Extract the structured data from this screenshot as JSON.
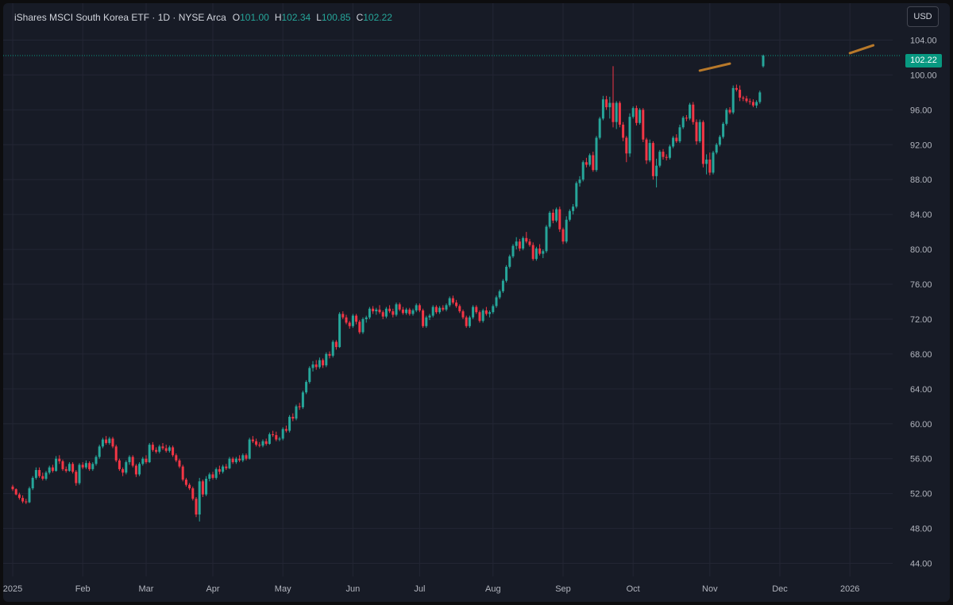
{
  "header": {
    "title": "iShares MSCI South Korea ETF · 1D · NYSE Arca",
    "open_label": "O",
    "open": "101.00",
    "high_label": "H",
    "high": "102.34",
    "low_label": "L",
    "low": "100.85",
    "close_label": "C",
    "close": "102.22"
  },
  "currency_button": "USD",
  "last_price_tag": "102.22",
  "colors": {
    "up": "#26a69a",
    "down": "#f23645",
    "background": "#171b26",
    "grid": "#232634",
    "trendline": "#b8792a",
    "price_line": "#089981"
  },
  "chart_data": {
    "type": "candlestick",
    "title": "iShares MSCI South Korea ETF",
    "y_axis": {
      "range": [
        42.5,
        105.5
      ],
      "ticks": [
        "44.00",
        "48.00",
        "52.00",
        "56.00",
        "60.00",
        "64.00",
        "68.00",
        "72.00",
        "76.00",
        "80.00",
        "84.00",
        "88.00",
        "92.00",
        "96.00",
        "100.00",
        "104.00"
      ]
    },
    "x_axis": {
      "labels": [
        "2025",
        "Feb",
        "Mar",
        "Apr",
        "May",
        "Jun",
        "Jul",
        "Aug",
        "Sep",
        "Oct",
        "Nov",
        "Dec",
        "2026"
      ],
      "label_day_index": [
        0,
        21,
        40,
        60,
        81,
        102,
        122,
        144,
        165,
        186,
        209,
        230,
        251
      ],
      "total_days": 258
    },
    "last_price": 102.22,
    "grid": true,
    "candles": [
      [
        52.8,
        53.0,
        52.3,
        52.5
      ],
      [
        52.5,
        52.6,
        51.8,
        51.9
      ],
      [
        51.9,
        52.1,
        51.3,
        51.5
      ],
      [
        51.5,
        51.8,
        50.9,
        51.1
      ],
      [
        51.1,
        51.4,
        50.8,
        51.0
      ],
      [
        51.0,
        52.8,
        50.9,
        52.6
      ],
      [
        52.6,
        54.0,
        52.4,
        53.8
      ],
      [
        53.8,
        55.0,
        53.6,
        54.7
      ],
      [
        54.7,
        55.0,
        53.8,
        54.0
      ],
      [
        54.0,
        54.4,
        53.5,
        53.7
      ],
      [
        53.7,
        54.6,
        53.5,
        54.4
      ],
      [
        54.4,
        55.2,
        54.2,
        55.0
      ],
      [
        55.0,
        55.3,
        54.4,
        54.6
      ],
      [
        54.6,
        56.3,
        54.5,
        56.0
      ],
      [
        56.0,
        56.4,
        55.4,
        55.7
      ],
      [
        55.7,
        55.9,
        54.6,
        54.8
      ],
      [
        54.8,
        55.1,
        54.4,
        54.6
      ],
      [
        54.6,
        55.6,
        54.5,
        55.4
      ],
      [
        55.4,
        55.6,
        54.3,
        54.5
      ],
      [
        54.5,
        54.7,
        52.9,
        53.2
      ],
      [
        53.2,
        55.5,
        53.0,
        55.3
      ],
      [
        55.3,
        55.6,
        54.8,
        55.0
      ],
      [
        55.0,
        55.8,
        54.8,
        55.5
      ],
      [
        55.5,
        55.7,
        54.6,
        54.8
      ],
      [
        54.8,
        55.6,
        54.6,
        55.4
      ],
      [
        55.4,
        56.4,
        55.2,
        56.2
      ],
      [
        56.2,
        57.6,
        56.0,
        57.4
      ],
      [
        57.4,
        58.4,
        57.2,
        58.2
      ],
      [
        58.2,
        58.6,
        57.6,
        57.8
      ],
      [
        57.8,
        58.5,
        57.6,
        58.3
      ],
      [
        58.3,
        58.5,
        57.2,
        57.4
      ],
      [
        57.4,
        57.6,
        55.6,
        55.8
      ],
      [
        55.8,
        56.0,
        54.6,
        54.8
      ],
      [
        54.8,
        55.0,
        54.0,
        54.4
      ],
      [
        54.4,
        55.8,
        54.2,
        55.6
      ],
      [
        55.6,
        56.4,
        55.3,
        56.2
      ],
      [
        56.2,
        56.4,
        55.0,
        55.2
      ],
      [
        55.2,
        55.4,
        53.9,
        54.2
      ],
      [
        54.2,
        55.6,
        54.0,
        55.4
      ],
      [
        55.4,
        56.2,
        55.2,
        56.0
      ],
      [
        56.0,
        56.4,
        55.4,
        55.6
      ],
      [
        55.6,
        57.8,
        55.5,
        57.6
      ],
      [
        57.6,
        57.9,
        56.8,
        57.0
      ],
      [
        57.0,
        57.3,
        56.6,
        56.8
      ],
      [
        56.8,
        57.6,
        56.6,
        57.4
      ],
      [
        57.4,
        57.8,
        57.0,
        57.2
      ],
      [
        57.2,
        57.6,
        56.7,
        56.9
      ],
      [
        56.9,
        57.5,
        56.7,
        57.3
      ],
      [
        57.3,
        57.5,
        56.2,
        56.4
      ],
      [
        56.4,
        56.6,
        55.6,
        55.8
      ],
      [
        55.8,
        56.0,
        54.9,
        55.1
      ],
      [
        55.1,
        55.3,
        53.4,
        53.6
      ],
      [
        53.6,
        53.8,
        52.8,
        53.0
      ],
      [
        53.0,
        53.2,
        52.4,
        52.6
      ],
      [
        52.6,
        52.8,
        51.2,
        51.4
      ],
      [
        51.4,
        51.6,
        49.3,
        49.6
      ],
      [
        49.6,
        53.8,
        48.8,
        53.4
      ],
      [
        53.4,
        53.6,
        51.6,
        51.9
      ],
      [
        51.9,
        54.0,
        51.7,
        53.7
      ],
      [
        53.7,
        54.4,
        53.4,
        54.2
      ],
      [
        54.2,
        54.5,
        53.6,
        53.8
      ],
      [
        53.8,
        55.0,
        53.6,
        54.8
      ],
      [
        54.8,
        55.2,
        54.2,
        54.5
      ],
      [
        54.5,
        55.3,
        54.3,
        55.1
      ],
      [
        55.1,
        55.4,
        54.7,
        54.9
      ],
      [
        54.9,
        56.2,
        54.8,
        56.0
      ],
      [
        56.0,
        56.2,
        55.4,
        55.6
      ],
      [
        55.6,
        56.2,
        55.4,
        56.0
      ],
      [
        56.0,
        56.4,
        55.6,
        55.8
      ],
      [
        55.8,
        56.6,
        55.6,
        56.4
      ],
      [
        56.4,
        56.6,
        55.8,
        56.0
      ],
      [
        56.0,
        58.4,
        55.9,
        58.2
      ],
      [
        58.2,
        58.6,
        57.8,
        58.0
      ],
      [
        58.0,
        58.3,
        57.4,
        57.6
      ],
      [
        57.6,
        57.9,
        57.3,
        57.5
      ],
      [
        57.5,
        58.2,
        57.3,
        58.0
      ],
      [
        58.0,
        58.3,
        57.5,
        57.7
      ],
      [
        57.7,
        59.0,
        57.6,
        58.8
      ],
      [
        58.8,
        59.2,
        58.5,
        58.7
      ],
      [
        58.7,
        59.1,
        58.0,
        58.2
      ],
      [
        58.2,
        58.5,
        58.0,
        58.3
      ],
      [
        58.3,
        59.6,
        58.1,
        59.4
      ],
      [
        59.4,
        59.8,
        59.0,
        59.2
      ],
      [
        59.2,
        61.0,
        59.0,
        60.8
      ],
      [
        60.8,
        61.2,
        60.3,
        60.6
      ],
      [
        60.6,
        62.2,
        60.4,
        62.0
      ],
      [
        62.0,
        62.4,
        61.6,
        61.9
      ],
      [
        61.9,
        63.8,
        61.7,
        63.6
      ],
      [
        63.6,
        65.0,
        63.4,
        64.8
      ],
      [
        64.8,
        66.6,
        64.6,
        66.4
      ],
      [
        66.4,
        67.2,
        66.0,
        66.8
      ],
      [
        66.8,
        67.3,
        66.2,
        66.5
      ],
      [
        66.5,
        67.6,
        66.3,
        67.3
      ],
      [
        67.3,
        67.5,
        66.4,
        66.7
      ],
      [
        66.7,
        68.2,
        66.5,
        68.0
      ],
      [
        68.0,
        68.3,
        67.5,
        67.8
      ],
      [
        67.8,
        69.6,
        67.6,
        69.4
      ],
      [
        69.4,
        69.6,
        68.5,
        68.8
      ],
      [
        68.8,
        72.8,
        68.7,
        72.6
      ],
      [
        72.6,
        72.9,
        72.0,
        72.2
      ],
      [
        72.2,
        72.5,
        71.4,
        71.6
      ],
      [
        71.6,
        71.8,
        70.9,
        71.2
      ],
      [
        71.2,
        72.6,
        71.0,
        72.4
      ],
      [
        72.4,
        72.6,
        71.4,
        71.7
      ],
      [
        71.7,
        71.9,
        70.3,
        70.5
      ],
      [
        70.5,
        72.2,
        70.3,
        72.0
      ],
      [
        72.0,
        72.4,
        71.6,
        72.2
      ],
      [
        72.2,
        73.4,
        72.0,
        73.2
      ],
      [
        73.2,
        73.5,
        72.6,
        72.9
      ],
      [
        72.9,
        73.3,
        72.5,
        73.1
      ],
      [
        73.1,
        73.6,
        72.6,
        72.8
      ],
      [
        72.8,
        73.0,
        72.0,
        72.3
      ],
      [
        72.3,
        73.4,
        72.1,
        73.2
      ],
      [
        73.2,
        73.6,
        72.7,
        72.9
      ],
      [
        72.9,
        73.2,
        72.2,
        72.5
      ],
      [
        72.5,
        73.9,
        72.3,
        73.7
      ],
      [
        73.7,
        73.9,
        72.9,
        73.1
      ],
      [
        73.1,
        73.4,
        72.5,
        72.7
      ],
      [
        72.7,
        73.3,
        72.5,
        73.1
      ],
      [
        73.1,
        73.3,
        72.4,
        72.6
      ],
      [
        72.6,
        73.2,
        72.4,
        73.0
      ],
      [
        73.0,
        73.8,
        72.8,
        73.6
      ],
      [
        73.6,
        73.8,
        72.8,
        73.0
      ],
      [
        73.0,
        73.2,
        71.0,
        71.2
      ],
      [
        71.2,
        72.4,
        71.0,
        72.2
      ],
      [
        72.2,
        72.6,
        71.9,
        72.4
      ],
      [
        72.4,
        73.6,
        72.2,
        73.4
      ],
      [
        73.4,
        73.6,
        72.6,
        72.8
      ],
      [
        72.8,
        73.5,
        72.6,
        73.3
      ],
      [
        73.3,
        73.6,
        72.9,
        73.1
      ],
      [
        73.1,
        73.8,
        72.9,
        73.6
      ],
      [
        73.6,
        74.6,
        73.4,
        74.4
      ],
      [
        74.4,
        74.7,
        73.7,
        73.9
      ],
      [
        73.9,
        74.2,
        73.3,
        73.5
      ],
      [
        73.5,
        73.7,
        72.7,
        72.9
      ],
      [
        72.9,
        73.1,
        72.0,
        72.2
      ],
      [
        72.2,
        72.4,
        71.0,
        71.2
      ],
      [
        71.2,
        72.4,
        71.0,
        72.2
      ],
      [
        72.2,
        73.6,
        72.0,
        73.4
      ],
      [
        73.4,
        73.6,
        72.6,
        72.8
      ],
      [
        72.8,
        73.0,
        71.6,
        71.8
      ],
      [
        71.8,
        73.2,
        71.6,
        73.0
      ],
      [
        73.0,
        73.4,
        72.4,
        72.6
      ],
      [
        72.6,
        73.0,
        72.2,
        72.8
      ],
      [
        72.8,
        73.7,
        72.6,
        73.5
      ],
      [
        73.5,
        74.7,
        73.3,
        74.5
      ],
      [
        74.5,
        75.4,
        74.3,
        75.2
      ],
      [
        75.2,
        76.6,
        75.0,
        76.4
      ],
      [
        76.4,
        78.2,
        76.2,
        78.0
      ],
      [
        78.0,
        79.4,
        77.8,
        79.2
      ],
      [
        79.2,
        80.6,
        79.0,
        80.4
      ],
      [
        80.4,
        81.4,
        80.0,
        80.9
      ],
      [
        80.9,
        81.2,
        79.8,
        80.1
      ],
      [
        80.1,
        81.5,
        79.9,
        81.3
      ],
      [
        81.3,
        82.0,
        80.7,
        80.9
      ],
      [
        80.9,
        81.2,
        80.3,
        80.5
      ],
      [
        80.5,
        80.8,
        78.7,
        78.9
      ],
      [
        78.9,
        80.3,
        78.7,
        80.1
      ],
      [
        80.1,
        80.6,
        79.3,
        79.5
      ],
      [
        79.5,
        80.0,
        79.0,
        79.8
      ],
      [
        79.8,
        82.8,
        79.6,
        82.6
      ],
      [
        82.6,
        84.4,
        82.4,
        84.2
      ],
      [
        84.2,
        84.6,
        83.0,
        83.3
      ],
      [
        83.3,
        84.8,
        83.1,
        84.6
      ],
      [
        84.6,
        84.9,
        82.0,
        82.3
      ],
      [
        82.3,
        82.5,
        80.6,
        80.9
      ],
      [
        80.9,
        83.8,
        80.7,
        83.4
      ],
      [
        83.4,
        84.6,
        83.2,
        84.4
      ],
      [
        84.4,
        85.2,
        84.0,
        84.9
      ],
      [
        84.9,
        87.8,
        84.7,
        87.6
      ],
      [
        87.6,
        88.4,
        87.2,
        88.0
      ],
      [
        88.0,
        90.2,
        87.8,
        90.0
      ],
      [
        90.0,
        90.5,
        89.4,
        89.7
      ],
      [
        89.7,
        91.0,
        89.5,
        90.8
      ],
      [
        90.8,
        91.2,
        88.9,
        89.1
      ],
      [
        89.1,
        93.0,
        88.9,
        92.8
      ],
      [
        92.8,
        95.2,
        92.6,
        95.0
      ],
      [
        95.0,
        97.6,
        94.8,
        97.2
      ],
      [
        97.2,
        97.6,
        96.0,
        96.3
      ],
      [
        96.3,
        97.5,
        95.0,
        96.8
      ],
      [
        96.8,
        101.0,
        94.0,
        94.6
      ],
      [
        94.6,
        97.0,
        93.8,
        96.8
      ],
      [
        96.8,
        97.0,
        94.0,
        94.3
      ],
      [
        94.3,
        94.6,
        92.4,
        92.8
      ],
      [
        92.8,
        93.0,
        90.0,
        91.0
      ],
      [
        91.0,
        95.6,
        90.6,
        95.2
      ],
      [
        95.2,
        96.4,
        95.0,
        96.2
      ],
      [
        96.2,
        96.5,
        94.2,
        94.5
      ],
      [
        94.5,
        96.2,
        94.3,
        96.0
      ],
      [
        96.0,
        96.2,
        92.3,
        92.6
      ],
      [
        92.6,
        92.8,
        89.8,
        90.2
      ],
      [
        90.2,
        92.6,
        90.0,
        92.2
      ],
      [
        92.2,
        92.4,
        88.0,
        88.4
      ],
      [
        88.4,
        90.4,
        87.1,
        89.6
      ],
      [
        89.6,
        91.4,
        89.4,
        91.2
      ],
      [
        91.2,
        91.5,
        90.3,
        90.6
      ],
      [
        90.6,
        90.9,
        90.2,
        90.5
      ],
      [
        90.5,
        92.0,
        90.3,
        91.8
      ],
      [
        91.8,
        93.0,
        91.6,
        92.8
      ],
      [
        92.8,
        93.2,
        92.2,
        92.4
      ],
      [
        92.4,
        94.3,
        92.2,
        94.0
      ],
      [
        94.0,
        95.3,
        93.8,
        95.1
      ],
      [
        95.1,
        95.4,
        94.7,
        95.0
      ],
      [
        95.0,
        96.8,
        94.8,
        96.6
      ],
      [
        96.6,
        96.9,
        94.3,
        94.6
      ],
      [
        94.6,
        94.9,
        92.0,
        92.4
      ],
      [
        92.4,
        94.9,
        92.2,
        94.6
      ],
      [
        94.6,
        94.8,
        89.4,
        89.8
      ],
      [
        89.8,
        90.9,
        88.6,
        90.3
      ],
      [
        90.3,
        91.1,
        88.5,
        88.8
      ],
      [
        88.8,
        91.3,
        88.6,
        91.1
      ],
      [
        91.1,
        92.2,
        90.9,
        92.0
      ],
      [
        92.0,
        93.1,
        91.8,
        92.9
      ],
      [
        92.9,
        94.6,
        92.7,
        94.4
      ],
      [
        94.4,
        96.2,
        94.2,
        96.0
      ],
      [
        96.0,
        96.3,
        95.5,
        95.7
      ],
      [
        95.7,
        98.8,
        95.5,
        98.5
      ],
      [
        98.5,
        98.9,
        98.1,
        98.3
      ],
      [
        98.3,
        98.8,
        97.0,
        97.4
      ],
      [
        97.4,
        97.6,
        97.0,
        97.3
      ],
      [
        97.3,
        97.6,
        96.8,
        97.0
      ],
      [
        97.0,
        97.3,
        96.6,
        96.9
      ],
      [
        96.9,
        97.2,
        96.3,
        96.5
      ],
      [
        96.5,
        97.1,
        96.2,
        96.9
      ],
      [
        96.9,
        98.2,
        96.7,
        98.0
      ],
      [
        101.0,
        102.34,
        100.85,
        102.22
      ]
    ],
    "trendlines": [
      {
        "from": [
          206,
          100.5
        ],
        "to": [
          215,
          101.3
        ]
      },
      {
        "from": [
          251,
          102.5
        ],
        "to": [
          258,
          103.4
        ]
      }
    ]
  }
}
